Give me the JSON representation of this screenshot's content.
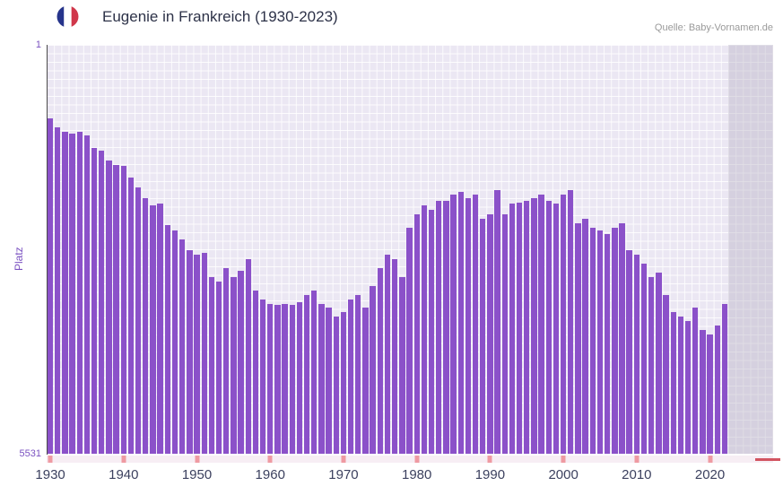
{
  "header": {
    "title": "Eugenie in Frankreich (1930-2023)",
    "source": "Quelle: Baby-Vornamen.de",
    "flag_colors": {
      "blue": "#26348B",
      "white": "#FFFFFF",
      "red": "#D0374B"
    }
  },
  "chart_data": {
    "type": "bar",
    "title": "Eugenie in Frankreich (1930-2023)",
    "ylabel": "Platz",
    "y_axis_inverted": true,
    "y_top_label": "1",
    "y_bottom_label": "5531",
    "ylim": [
      1,
      5531
    ],
    "start_year": 1930,
    "end_year": 2022,
    "no_data_years": [
      2023
    ],
    "x_tick_labels": [
      "1930",
      "1940",
      "1950",
      "1960",
      "1970",
      "1980",
      "1990",
      "2000",
      "2010",
      "2020"
    ],
    "bar_color": "#8B51C9",
    "plot_bg_color": "#EBE7F3",
    "grid_color": "#FFFFFF",
    "band_color": "rgba(180,176,192,0.40)",
    "axis_label_color": "#7B52C1",
    "tick_label_color": "#3C415F",
    "ranks": [
      1000,
      1120,
      1180,
      1200,
      1180,
      1230,
      1390,
      1430,
      1570,
      1630,
      1640,
      1790,
      1930,
      2080,
      2170,
      2150,
      2440,
      2510,
      2630,
      2780,
      2840,
      2810,
      3140,
      3200,
      3020,
      3140,
      3060,
      2900,
      3320,
      3440,
      3500,
      3520,
      3500,
      3520,
      3480,
      3380,
      3320,
      3500,
      3560,
      3680,
      3620,
      3440,
      3380,
      3560,
      3260,
      3020,
      2840,
      2900,
      3140,
      2480,
      2290,
      2170,
      2230,
      2110,
      2110,
      2030,
      1990,
      2080,
      2030,
      2350,
      2290,
      1970,
      2290,
      2150,
      2140,
      2110,
      2080,
      2030,
      2110,
      2150,
      2030,
      1960,
      2420,
      2350,
      2480,
      2510,
      2560,
      2480,
      2420,
      2780,
      2840,
      2960,
      3140,
      3080,
      3380,
      3620,
      3680,
      3740,
      3560,
      3860,
      3920,
      3800,
      3500
    ]
  },
  "slider": {
    "bg_color": "#F7EEF4",
    "tick_color": "#EF9AA2",
    "handle_color": "#D25460",
    "tick_years": [
      "1930",
      "1940",
      "1950",
      "1960",
      "1970",
      "1980",
      "1990",
      "2000",
      "2010",
      "2020"
    ]
  }
}
